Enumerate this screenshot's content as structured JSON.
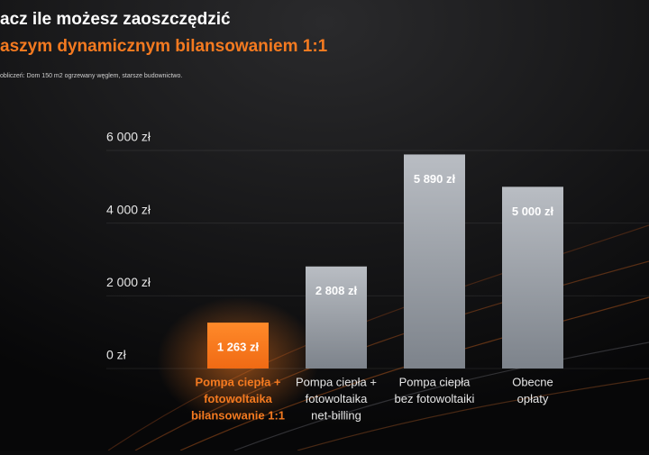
{
  "header": {
    "title": "acz ile możesz zaoszczędzić",
    "subtitle": "aszym dynamicznym bilansowaniem 1:1",
    "note": "obliczeń: Dom 150 m2 ogrzewany węglem, starsze budownictwo."
  },
  "chart_data": {
    "type": "bar",
    "categories": [
      [
        "Pompa ciepła +",
        "fotowoltaika",
        "bilansowanie 1:1"
      ],
      [
        "Pompa ciepła +",
        "fotowoltaika",
        "net-billing"
      ],
      [
        "Pompa ciepła",
        "bez fotowoltaiki"
      ],
      [
        "Obecne",
        "opłaty"
      ]
    ],
    "values": [
      1263,
      2808,
      5890,
      5000
    ],
    "value_labels": [
      "1 263 zł",
      "2 808 zł",
      "5 890 zł",
      "5 000 zł"
    ],
    "colors": [
      "#f47a20",
      "#9aa0a8",
      "#9aa0a8",
      "#9aa0a8"
    ],
    "ylim": [
      0,
      6000
    ],
    "yticks": [
      {
        "value": 0,
        "label": "0 zł"
      },
      {
        "value": 2000,
        "label": "2 000 zł"
      },
      {
        "value": 4000,
        "label": "4 000 zł"
      },
      {
        "value": 6000,
        "label": "6 000 zł"
      }
    ],
    "grid": true
  }
}
